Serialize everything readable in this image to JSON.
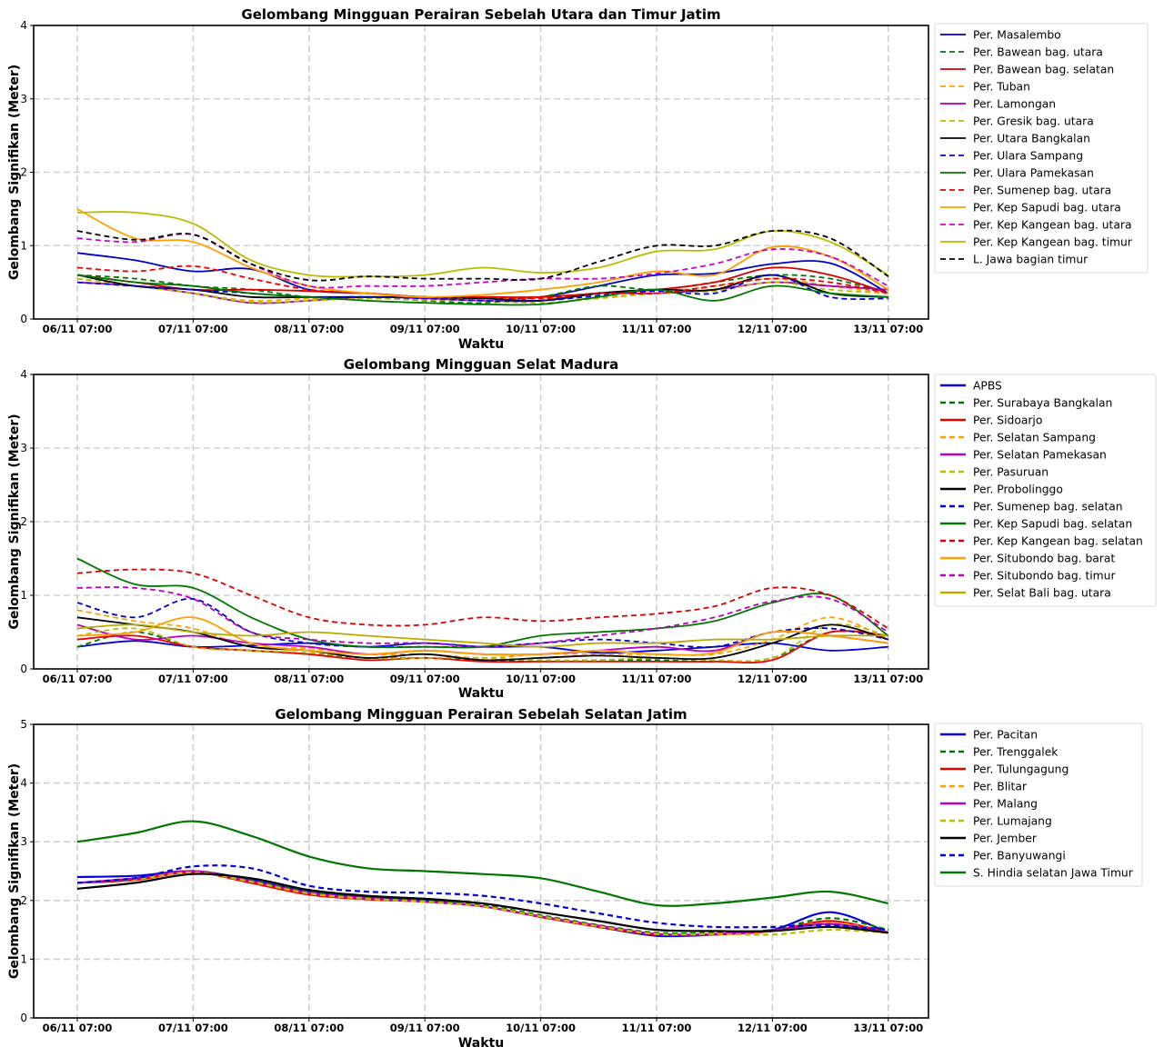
{
  "x_ticks": [
    "06/11 07:00",
    "07/11 07:00",
    "08/11 07:00",
    "09/11 07:00",
    "10/11 07:00",
    "11/11 07:00",
    "12/11 07:00",
    "13/11 07:00"
  ],
  "chart_data": [
    {
      "type": "line",
      "title": "Gelombang Mingguan Perairan Sebelah Utara dan Timur Jatim",
      "xlabel": "Waktu",
      "ylabel": "Gelombang Signifikan (Meter)",
      "ylim": [
        0,
        4
      ],
      "yticks": [
        "0",
        "1",
        "2",
        "3",
        "4"
      ],
      "grid": true,
      "legend_position": "outside-right",
      "x": [
        "06/11 07:00",
        "06/11 19:00",
        "07/11 07:00",
        "07/11 19:00",
        "08/11 07:00",
        "08/11 19:00",
        "09/11 07:00",
        "09/11 19:00",
        "10/11 07:00",
        "10/11 19:00",
        "11/11 07:00",
        "11/11 19:00",
        "12/11 07:00",
        "12/11 19:00",
        "13/11 07:00"
      ],
      "series": [
        {
          "name": "Per. Masalembo",
          "color": "#0000cc",
          "dash": false,
          "values": [
            0.9,
            0.8,
            0.65,
            0.68,
            0.4,
            0.35,
            0.3,
            0.28,
            0.3,
            0.45,
            0.6,
            0.62,
            0.75,
            0.76,
            0.35
          ]
        },
        {
          "name": "Per. Bawean bag. utara",
          "color": "#007700",
          "dash": true,
          "values": [
            0.6,
            0.55,
            0.45,
            0.4,
            0.3,
            0.3,
            0.25,
            0.22,
            0.3,
            0.45,
            0.4,
            0.5,
            0.6,
            0.55,
            0.35
          ]
        },
        {
          "name": "Per. Bawean bag. selatan",
          "color": "#dd0000",
          "dash": false,
          "values": [
            0.6,
            0.5,
            0.4,
            0.4,
            0.38,
            0.35,
            0.3,
            0.3,
            0.3,
            0.35,
            0.4,
            0.5,
            0.7,
            0.6,
            0.35
          ]
        },
        {
          "name": "Per. Tuban",
          "color": "#ffa000",
          "dash": true,
          "values": [
            0.55,
            0.45,
            0.35,
            0.25,
            0.28,
            0.28,
            0.28,
            0.28,
            0.28,
            0.3,
            0.35,
            0.45,
            0.55,
            0.45,
            0.35
          ]
        },
        {
          "name": "Per. Lamongan",
          "color": "#aa00aa",
          "dash": false,
          "values": [
            0.5,
            0.45,
            0.35,
            0.22,
            0.25,
            0.3,
            0.28,
            0.25,
            0.25,
            0.35,
            0.35,
            0.4,
            0.5,
            0.45,
            0.4
          ]
        },
        {
          "name": "Per. Gresik bag. utara",
          "color": "#bbbb00",
          "dash": true,
          "values": [
            0.55,
            0.45,
            0.35,
            0.23,
            0.25,
            0.28,
            0.26,
            0.25,
            0.22,
            0.28,
            0.35,
            0.38,
            0.5,
            0.4,
            0.35
          ]
        },
        {
          "name": "Per. Utara Bangkalan",
          "color": "#000000",
          "dash": false,
          "values": [
            0.6,
            0.45,
            0.4,
            0.3,
            0.3,
            0.3,
            0.3,
            0.28,
            0.25,
            0.35,
            0.4,
            0.4,
            0.6,
            0.35,
            0.3
          ]
        },
        {
          "name": "Per. Ulara Sampang",
          "color": "#0000ee",
          "dash": true,
          "values": [
            0.5,
            0.45,
            0.4,
            0.35,
            0.3,
            0.3,
            0.28,
            0.25,
            0.25,
            0.32,
            0.38,
            0.35,
            0.6,
            0.3,
            0.28
          ]
        },
        {
          "name": "Per. Ulara Pamekasan",
          "color": "#007700",
          "dash": false,
          "values": [
            0.6,
            0.5,
            0.45,
            0.35,
            0.3,
            0.25,
            0.22,
            0.2,
            0.2,
            0.3,
            0.4,
            0.25,
            0.45,
            0.35,
            0.3
          ]
        },
        {
          "name": "Per. Sumenep bag. utara",
          "color": "#ee0000",
          "dash": true,
          "values": [
            0.7,
            0.65,
            0.72,
            0.55,
            0.4,
            0.35,
            0.3,
            0.3,
            0.28,
            0.35,
            0.35,
            0.45,
            0.55,
            0.5,
            0.35
          ]
        },
        {
          "name": "Per. Kep Sapudi bag. utara",
          "color": "#ffa000",
          "dash": false,
          "values": [
            1.5,
            1.1,
            1.05,
            0.7,
            0.45,
            0.35,
            0.3,
            0.33,
            0.4,
            0.5,
            0.65,
            0.6,
            0.98,
            0.85,
            0.4
          ]
        },
        {
          "name": "Per. Kep Kangean bag. utara",
          "color": "#cc00cc",
          "dash": true,
          "values": [
            1.1,
            1.05,
            1.15,
            0.75,
            0.45,
            0.45,
            0.45,
            0.5,
            0.55,
            0.55,
            0.62,
            0.75,
            0.95,
            0.85,
            0.45
          ]
        },
        {
          "name": "Per. Kep Kangean bag. timur",
          "color": "#bbbb00",
          "dash": false,
          "values": [
            1.45,
            1.45,
            1.3,
            0.8,
            0.6,
            0.58,
            0.6,
            0.7,
            0.63,
            0.7,
            0.92,
            0.95,
            1.2,
            1.05,
            0.6
          ]
        },
        {
          "name": "L. Jawa bagian timur",
          "color": "#000000",
          "dash": true,
          "values": [
            1.2,
            1.08,
            1.15,
            0.75,
            0.53,
            0.58,
            0.55,
            0.55,
            0.55,
            0.78,
            1.0,
            1.0,
            1.2,
            1.1,
            0.58
          ]
        }
      ]
    },
    {
      "type": "line",
      "title": "Gelombang Mingguan Selat Madura",
      "xlabel": "Waktu",
      "ylabel": "Gelombang Signifikan (Meter)",
      "ylim": [
        0,
        4
      ],
      "yticks": [
        "0",
        "1",
        "2",
        "3",
        "4"
      ],
      "grid": true,
      "legend_position": "outside-right",
      "x": [
        "06/11 07:00",
        "06/11 19:00",
        "07/11 07:00",
        "07/11 19:00",
        "08/11 07:00",
        "08/11 19:00",
        "09/11 07:00",
        "09/11 19:00",
        "10/11 07:00",
        "10/11 19:00",
        "11/11 07:00",
        "11/11 19:00",
        "12/11 07:00",
        "12/11 19:00",
        "13/11 07:00"
      ],
      "series": [
        {
          "name": "APBS",
          "color": "#0000dd",
          "dash": false,
          "values": [
            0.3,
            0.38,
            0.3,
            0.32,
            0.35,
            0.3,
            0.35,
            0.3,
            0.3,
            0.22,
            0.25,
            0.3,
            0.35,
            0.25,
            0.3
          ]
        },
        {
          "name": "Per. Surabaya Bangkalan",
          "color": "#007700",
          "dash": true,
          "values": [
            0.3,
            0.5,
            0.3,
            0.25,
            0.2,
            0.15,
            0.15,
            0.12,
            0.1,
            0.12,
            0.12,
            0.1,
            0.15,
            0.5,
            0.45
          ]
        },
        {
          "name": "Per. Sidoarjo",
          "color": "#ee0000",
          "dash": false,
          "values": [
            0.4,
            0.45,
            0.3,
            0.25,
            0.2,
            0.12,
            0.15,
            0.1,
            0.1,
            0.1,
            0.1,
            0.1,
            0.12,
            0.5,
            0.45
          ]
        },
        {
          "name": "Per. Selatan Sampang",
          "color": "#ffa000",
          "dash": true,
          "values": [
            0.8,
            0.65,
            0.55,
            0.3,
            0.28,
            0.2,
            0.2,
            0.15,
            0.2,
            0.2,
            0.2,
            0.2,
            0.4,
            0.7,
            0.4
          ]
        },
        {
          "name": "Per. Selatan Pamekasan",
          "color": "#bb00bb",
          "dash": false,
          "values": [
            0.6,
            0.4,
            0.45,
            0.35,
            0.3,
            0.2,
            0.25,
            0.2,
            0.2,
            0.25,
            0.3,
            0.25,
            0.5,
            0.45,
            0.35
          ]
        },
        {
          "name": "Per. Pasuruan",
          "color": "#bbbb00",
          "dash": true,
          "values": [
            0.45,
            0.55,
            0.3,
            0.25,
            0.22,
            0.15,
            0.15,
            0.15,
            0.12,
            0.12,
            0.15,
            0.12,
            0.15,
            0.6,
            0.45
          ]
        },
        {
          "name": "Per. Probolinggo",
          "color": "#000000",
          "dash": false,
          "values": [
            0.7,
            0.6,
            0.5,
            0.3,
            0.25,
            0.15,
            0.2,
            0.12,
            0.15,
            0.18,
            0.15,
            0.15,
            0.35,
            0.6,
            0.4
          ]
        },
        {
          "name": "Per. Sumenep bag. selatan",
          "color": "#0000cc",
          "dash": true,
          "values": [
            0.9,
            0.7,
            0.95,
            0.5,
            0.35,
            0.3,
            0.3,
            0.3,
            0.35,
            0.4,
            0.35,
            0.3,
            0.5,
            0.55,
            0.4
          ]
        },
        {
          "name": "Per. Kep Sapudi bag. selatan",
          "color": "#007700",
          "dash": false,
          "values": [
            1.5,
            1.15,
            1.1,
            0.7,
            0.4,
            0.3,
            0.3,
            0.3,
            0.45,
            0.5,
            0.55,
            0.65,
            0.9,
            1.0,
            0.45
          ]
        },
        {
          "name": "Per. Kep Kangean bag. selatan",
          "color": "#dd0000",
          "dash": true,
          "values": [
            1.3,
            1.35,
            1.3,
            1.0,
            0.7,
            0.6,
            0.6,
            0.7,
            0.65,
            0.7,
            0.75,
            0.85,
            1.1,
            1.0,
            0.55
          ]
        },
        {
          "name": "Per. Situbondo bag. barat",
          "color": "#ffa000",
          "dash": false,
          "values": [
            0.45,
            0.5,
            0.7,
            0.35,
            0.25,
            0.2,
            0.25,
            0.2,
            0.2,
            0.25,
            0.2,
            0.22,
            0.5,
            0.45,
            0.35
          ]
        },
        {
          "name": "Per. Situbondo bag. timur",
          "color": "#bb00bb",
          "dash": true,
          "values": [
            1.1,
            1.1,
            0.95,
            0.5,
            0.4,
            0.35,
            0.35,
            0.3,
            0.35,
            0.45,
            0.55,
            0.7,
            0.92,
            0.95,
            0.5
          ]
        },
        {
          "name": "Per. Selat Bali bag. utara",
          "color": "#bbaa00",
          "dash": false,
          "values": [
            0.55,
            0.6,
            0.5,
            0.45,
            0.5,
            0.45,
            0.4,
            0.35,
            0.3,
            0.35,
            0.35,
            0.4,
            0.4,
            0.45,
            0.45
          ]
        }
      ]
    },
    {
      "type": "line",
      "title": "Gelombang Mingguan Perairan Sebelah Selatan Jatim",
      "xlabel": "Waktu",
      "ylabel": "Gelombang Signifikan (Meter)",
      "ylim": [
        0,
        5
      ],
      "yticks": [
        "0",
        "1",
        "2",
        "3",
        "4",
        "5"
      ],
      "grid": true,
      "legend_position": "outside-right",
      "x": [
        "06/11 07:00",
        "06/11 19:00",
        "07/11 07:00",
        "07/11 19:00",
        "08/11 07:00",
        "08/11 19:00",
        "09/11 07:00",
        "09/11 19:00",
        "10/11 07:00",
        "10/11 19:00",
        "11/11 07:00",
        "11/11 19:00",
        "12/11 07:00",
        "12/11 19:00",
        "13/11 07:00"
      ],
      "series": [
        {
          "name": "Per. Pacitan",
          "color": "#0000dd",
          "dash": false,
          "values": [
            2.4,
            2.42,
            2.5,
            2.35,
            2.15,
            2.05,
            2.0,
            1.9,
            1.72,
            1.55,
            1.4,
            1.42,
            1.5,
            1.8,
            1.45
          ]
        },
        {
          "name": "Per. Trenggalek",
          "color": "#007700",
          "dash": true,
          "values": [
            2.3,
            2.38,
            2.5,
            2.35,
            2.15,
            2.05,
            2.0,
            1.92,
            1.75,
            1.58,
            1.45,
            1.45,
            1.5,
            1.7,
            1.5
          ]
        },
        {
          "name": "Per. Tulungagung",
          "color": "#ee0000",
          "dash": false,
          "values": [
            2.3,
            2.35,
            2.48,
            2.3,
            2.1,
            2.02,
            1.98,
            1.9,
            1.72,
            1.55,
            1.42,
            1.42,
            1.48,
            1.65,
            1.45
          ]
        },
        {
          "name": "Per. Blitar",
          "color": "#ffa000",
          "dash": true,
          "values": [
            2.3,
            2.37,
            2.48,
            2.32,
            2.12,
            2.03,
            1.98,
            1.9,
            1.73,
            1.56,
            1.43,
            1.43,
            1.48,
            1.62,
            1.47
          ]
        },
        {
          "name": "Per. Malang",
          "color": "#bb00bb",
          "dash": false,
          "values": [
            2.3,
            2.38,
            2.5,
            2.33,
            2.13,
            2.04,
            1.98,
            1.9,
            1.73,
            1.57,
            1.43,
            1.43,
            1.49,
            1.6,
            1.45
          ]
        },
        {
          "name": "Per. Lumajang",
          "color": "#bbbb00",
          "dash": true,
          "values": [
            2.3,
            2.36,
            2.48,
            2.32,
            2.12,
            2.03,
            1.98,
            1.9,
            1.73,
            1.56,
            1.43,
            1.43,
            1.42,
            1.5,
            1.45
          ]
        },
        {
          "name": "Per. Jember",
          "color": "#000000",
          "dash": false,
          "values": [
            2.2,
            2.3,
            2.45,
            2.38,
            2.18,
            2.08,
            2.03,
            1.95,
            1.8,
            1.65,
            1.5,
            1.48,
            1.48,
            1.55,
            1.45
          ]
        },
        {
          "name": "Per. Banyuwangi",
          "color": "#0000dd",
          "dash": true,
          "values": [
            2.3,
            2.38,
            2.58,
            2.55,
            2.25,
            2.15,
            2.13,
            2.08,
            1.95,
            1.78,
            1.62,
            1.55,
            1.55,
            1.58,
            1.5
          ]
        },
        {
          "name": "S. Hindia selatan Jawa Timur",
          "color": "#007700",
          "dash": false,
          "values": [
            3.0,
            3.15,
            3.35,
            3.1,
            2.75,
            2.55,
            2.5,
            2.45,
            2.38,
            2.15,
            1.92,
            1.95,
            2.05,
            2.15,
            1.95
          ]
        }
      ]
    }
  ]
}
